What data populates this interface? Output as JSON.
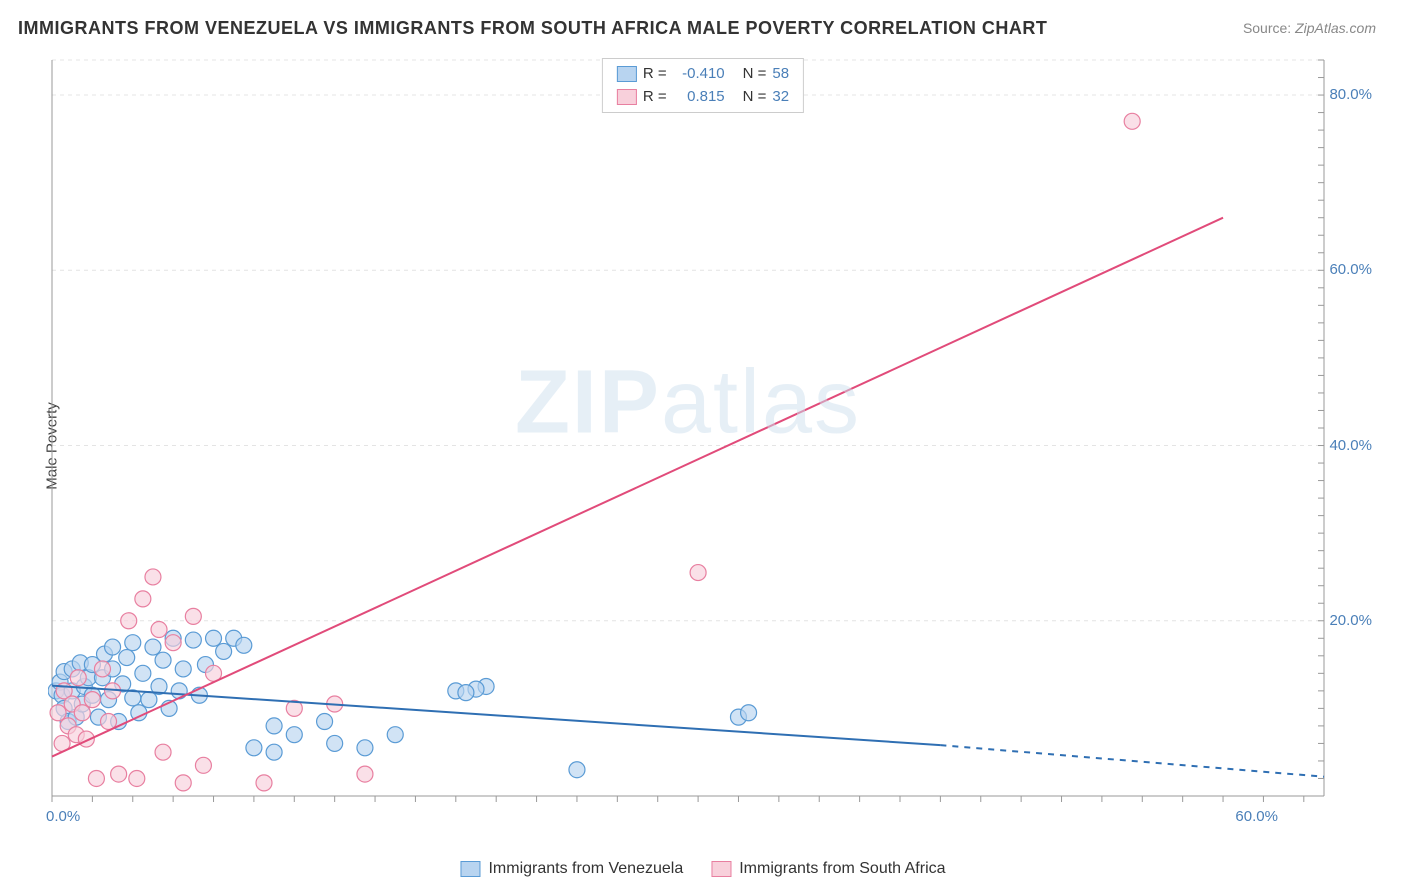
{
  "title": "IMMIGRANTS FROM VENEZUELA VS IMMIGRANTS FROM SOUTH AFRICA MALE POVERTY CORRELATION CHART",
  "source_label": "Source:",
  "source_value": "ZipAtlas.com",
  "ylabel": "Male Poverty",
  "watermark": {
    "bold": "ZIP",
    "rest": "atlas"
  },
  "chart": {
    "type": "scatter",
    "background_color": "#ffffff",
    "grid_color": "#e4e4e4",
    "axis_color": "#999999",
    "xlim": [
      0,
      63
    ],
    "ylim": [
      0,
      84
    ],
    "yticks": [
      20,
      40,
      60,
      80
    ],
    "ytick_labels": [
      "20.0%",
      "40.0%",
      "60.0%",
      "80.0%"
    ],
    "xticks": [
      0,
      60
    ],
    "xtick_labels": [
      "0.0%",
      "60.0%"
    ],
    "minor_tick_x_step": 2,
    "minor_tick_y_step": 2,
    "series": [
      {
        "name": "Immigrants from Venezuela",
        "color_fill": "#b8d4f0",
        "color_stroke": "#5a9bd5",
        "marker_radius": 8,
        "marker_opacity": 0.65,
        "R": "-0.410",
        "N": "58",
        "trend": {
          "x1": 0,
          "y1": 12.6,
          "x2": 44,
          "y2": 5.8,
          "dash_to_x": 63,
          "dash_to_y": 2.2,
          "color": "#2f6fb3",
          "width": 2
        },
        "points": [
          [
            0.2,
            12.0
          ],
          [
            0.4,
            13.0
          ],
          [
            0.5,
            11.5
          ],
          [
            0.6,
            10.0
          ],
          [
            0.6,
            14.2
          ],
          [
            0.8,
            8.5
          ],
          [
            1.0,
            12.0
          ],
          [
            1.0,
            14.5
          ],
          [
            1.2,
            9.0
          ],
          [
            1.4,
            15.2
          ],
          [
            1.5,
            10.5
          ],
          [
            1.6,
            12.5
          ],
          [
            1.8,
            13.5
          ],
          [
            2.0,
            11.5
          ],
          [
            2.0,
            15.0
          ],
          [
            2.3,
            9.0
          ],
          [
            2.5,
            13.5
          ],
          [
            2.6,
            16.2
          ],
          [
            2.8,
            11.0
          ],
          [
            3.0,
            14.5
          ],
          [
            3.0,
            17.0
          ],
          [
            3.3,
            8.5
          ],
          [
            3.5,
            12.8
          ],
          [
            3.7,
            15.8
          ],
          [
            4.0,
            11.2
          ],
          [
            4.0,
            17.5
          ],
          [
            4.3,
            9.5
          ],
          [
            4.5,
            14.0
          ],
          [
            4.8,
            11.0
          ],
          [
            5.0,
            17.0
          ],
          [
            5.3,
            12.5
          ],
          [
            5.5,
            15.5
          ],
          [
            5.8,
            10.0
          ],
          [
            6.0,
            18.0
          ],
          [
            6.3,
            12.0
          ],
          [
            6.5,
            14.5
          ],
          [
            7.0,
            17.8
          ],
          [
            7.3,
            11.5
          ],
          [
            7.6,
            15.0
          ],
          [
            8.0,
            18.0
          ],
          [
            8.5,
            16.5
          ],
          [
            9.0,
            18.0
          ],
          [
            9.5,
            17.2
          ],
          [
            10.0,
            5.5
          ],
          [
            11.0,
            5.0
          ],
          [
            11.0,
            8.0
          ],
          [
            12.0,
            7.0
          ],
          [
            13.5,
            8.5
          ],
          [
            14.0,
            6.0
          ],
          [
            15.5,
            5.5
          ],
          [
            17.0,
            7.0
          ],
          [
            20.0,
            12.0
          ],
          [
            21.5,
            12.5
          ],
          [
            26.0,
            3.0
          ],
          [
            34.0,
            9.0
          ],
          [
            34.5,
            9.5
          ],
          [
            21.0,
            12.2
          ],
          [
            20.5,
            11.8
          ]
        ]
      },
      {
        "name": "Immigrants from South Africa",
        "color_fill": "#f8d0db",
        "color_stroke": "#e87fa0",
        "marker_radius": 8,
        "marker_opacity": 0.65,
        "R": "0.815",
        "N": "32",
        "trend": {
          "x1": 0,
          "y1": 4.5,
          "x2": 58,
          "y2": 66.0,
          "color": "#e14b7a",
          "width": 2
        },
        "points": [
          [
            0.3,
            9.5
          ],
          [
            0.5,
            6.0
          ],
          [
            0.6,
            12.0
          ],
          [
            0.8,
            8.0
          ],
          [
            1.0,
            10.5
          ],
          [
            1.2,
            7.0
          ],
          [
            1.3,
            13.5
          ],
          [
            1.5,
            9.5
          ],
          [
            1.7,
            6.5
          ],
          [
            2.0,
            11.0
          ],
          [
            2.2,
            2.0
          ],
          [
            2.5,
            14.5
          ],
          [
            2.8,
            8.5
          ],
          [
            3.0,
            12.0
          ],
          [
            3.3,
            2.5
          ],
          [
            3.8,
            20.0
          ],
          [
            4.5,
            22.5
          ],
          [
            5.0,
            25.0
          ],
          [
            5.3,
            19.0
          ],
          [
            5.5,
            5.0
          ],
          [
            6.0,
            17.5
          ],
          [
            6.5,
            1.5
          ],
          [
            7.0,
            20.5
          ],
          [
            7.5,
            3.5
          ],
          [
            8.0,
            14.0
          ],
          [
            10.5,
            1.5
          ],
          [
            12.0,
            10.0
          ],
          [
            14.0,
            10.5
          ],
          [
            15.5,
            2.5
          ],
          [
            32.0,
            25.5
          ],
          [
            53.5,
            77.0
          ],
          [
            4.2,
            2.0
          ]
        ]
      }
    ],
    "legend_top": [
      {
        "swatch_fill": "#b8d4f0",
        "swatch_stroke": "#5a9bd5",
        "r_label": "R =",
        "r_val": "-0.410",
        "n_label": "N =",
        "n_val": "58"
      },
      {
        "swatch_fill": "#f8d0db",
        "swatch_stroke": "#e87fa0",
        "r_label": "R =",
        "r_val": " 0.815",
        "n_label": "N =",
        "n_val": "32"
      }
    ],
    "legend_bottom": [
      {
        "swatch_fill": "#b8d4f0",
        "swatch_stroke": "#5a9bd5",
        "label": "Immigrants from Venezuela"
      },
      {
        "swatch_fill": "#f8d0db",
        "swatch_stroke": "#e87fa0",
        "label": "Immigrants from South Africa"
      }
    ]
  }
}
